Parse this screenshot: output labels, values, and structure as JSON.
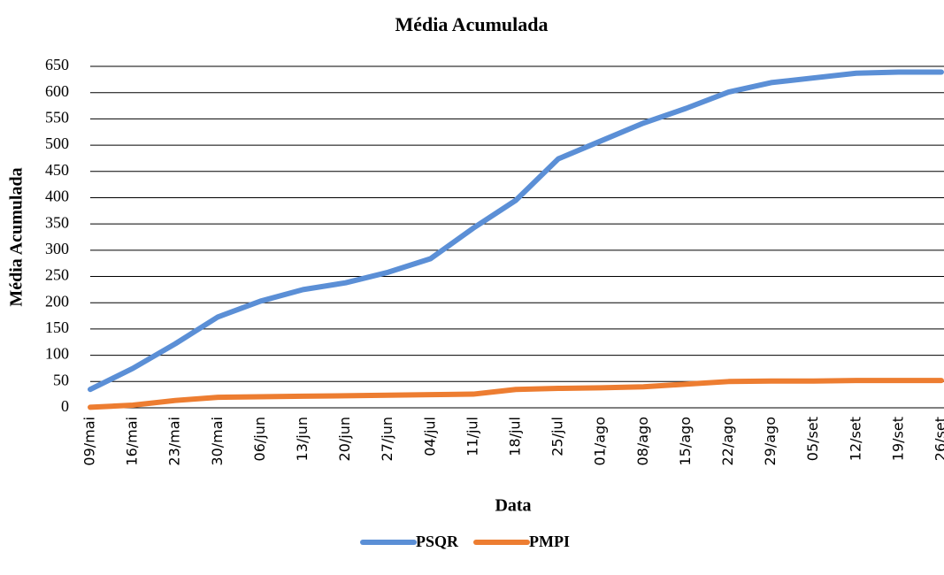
{
  "chart_data": {
    "type": "line",
    "title": "Média Acumulada",
    "x_label": "Data",
    "y_label": "Média Acumulada",
    "categories": [
      "09/mai",
      "16/mai",
      "23/mai",
      "30/mai",
      "06/jun",
      "13/jun",
      "20/jun",
      "27/jun",
      "04/jul",
      "11/jul",
      "18/jul",
      "25/jul",
      "01/ago",
      "08/ago",
      "15/ago",
      "22/ago",
      "29/ago",
      "05/set",
      "12/set",
      "19/set",
      "26/set"
    ],
    "series": [
      {
        "name": "PSQR",
        "color": "#5b8fd6",
        "values": [
          35,
          75,
          122,
          173,
          203,
          225,
          238,
          258,
          284,
          342,
          395,
          474,
          508,
          542,
          570,
          601,
          619,
          628,
          637,
          639,
          639
        ]
      },
      {
        "name": "PMPI",
        "color": "#ed7d31",
        "values": [
          1,
          5,
          14,
          20,
          21,
          22,
          23,
          24,
          25,
          26,
          35,
          37,
          38,
          40,
          45,
          50,
          51,
          51,
          52,
          52,
          52
        ]
      }
    ],
    "ylim": [
      0,
      650
    ],
    "yticks": [
      0,
      50,
      100,
      150,
      200,
      250,
      300,
      350,
      400,
      450,
      500,
      550,
      600,
      650
    ],
    "grid": true,
    "legend": "bottom"
  }
}
